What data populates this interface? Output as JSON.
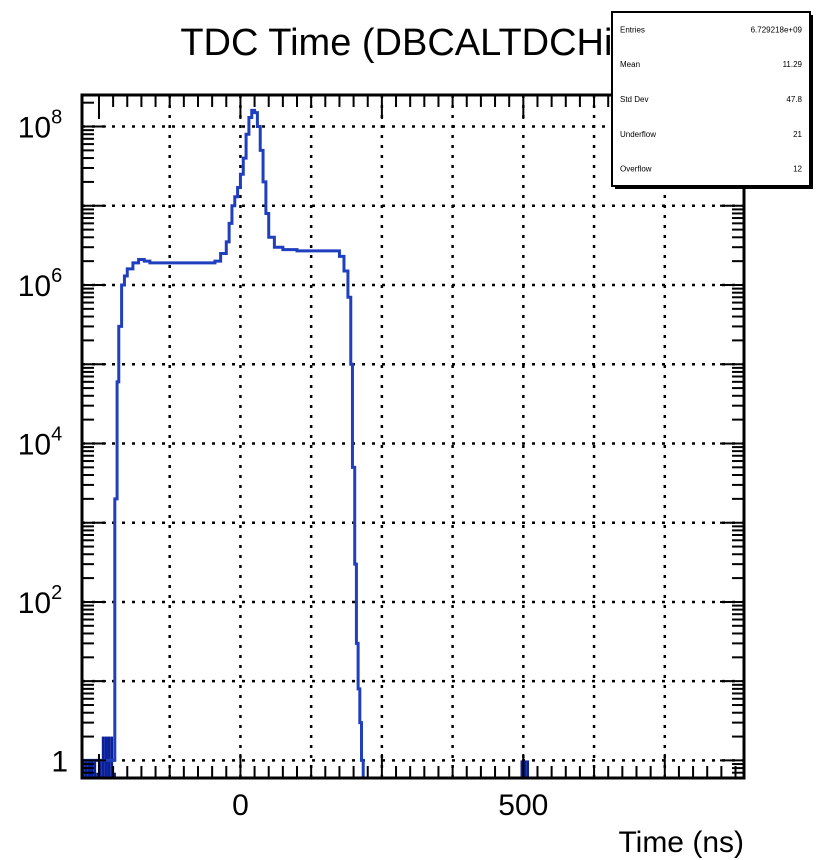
{
  "chart_data": {
    "type": "histogram",
    "title": "TDC Time (DBCALTDCHit)",
    "xlabel": "Time (ns)",
    "ylabel": "",
    "xlim": [
      -280,
      890
    ],
    "ylim": [
      0.6,
      250000000
    ],
    "yscale": "log",
    "grid": true,
    "line_color": "#1f3fbf",
    "fill_color": "#0a1f9a",
    "x_ticks": [
      {
        "value": 0,
        "label": "0"
      },
      {
        "value": 500,
        "label": "500"
      }
    ],
    "y_ticks": [
      {
        "value": 1,
        "base": "1",
        "exp": ""
      },
      {
        "value": 100,
        "base": "10",
        "exp": "2"
      },
      {
        "value": 10000,
        "base": "10",
        "exp": "4"
      },
      {
        "value": 1000000,
        "base": "10",
        "exp": "6"
      },
      {
        "value": 100000000,
        "base": "10",
        "exp": "8"
      }
    ],
    "series": [
      {
        "x": [
          -280,
          -250,
          -225,
          -222,
          -218,
          -215,
          -210,
          -205,
          -200,
          -190,
          -180,
          -170,
          -160,
          -150,
          -130,
          -100,
          -70,
          -45,
          -35,
          -25,
          -20,
          -15,
          -10,
          -5,
          0,
          5,
          10,
          15,
          20,
          25,
          30,
          35,
          40,
          45,
          50,
          60,
          75,
          100,
          130,
          160,
          175,
          183,
          190,
          195,
          198,
          202,
          205,
          208,
          211,
          214,
          217
        ],
        "values": [
          1,
          1,
          1,
          2000,
          60000,
          300000,
          1000000,
          1300000,
          1600000,
          1900000,
          2100000,
          2000000,
          1900000,
          1900000,
          1900000,
          1900000,
          1900000,
          2000000,
          2500000,
          3500000,
          6000000,
          10000000,
          13000000,
          17000000,
          25000000,
          40000000,
          80000000,
          130000000,
          160000000,
          150000000,
          100000000,
          50000000,
          20000000,
          8000000,
          4000000,
          3000000,
          2800000,
          2700000,
          2700000,
          2700000,
          2300000,
          1500000,
          700000,
          100000,
          5000,
          300,
          30,
          8,
          3,
          1,
          0.6
        ],
        "bins_at_x": [
          -280,
          -275,
          -270,
          -265,
          -260,
          -255,
          -250,
          -245,
          -240,
          -235,
          -230,
          -225,
          485,
          490,
          495,
          500,
          505
        ],
        "bin_values": [
          1,
          1,
          1,
          1,
          1,
          0.7,
          1,
          2,
          2,
          2,
          2,
          0.7,
          0,
          0,
          1,
          1,
          1
        ]
      }
    ],
    "stats_box": {
      "rows": [
        {
          "label": "Entries",
          "value": "6.729218e+09"
        },
        {
          "label": "Mean",
          "value": "11.29"
        },
        {
          "label": "Std Dev",
          "value": "47.8"
        },
        {
          "label": "Underflow",
          "value": "21"
        },
        {
          "label": "Overflow",
          "value": "12"
        }
      ]
    }
  }
}
